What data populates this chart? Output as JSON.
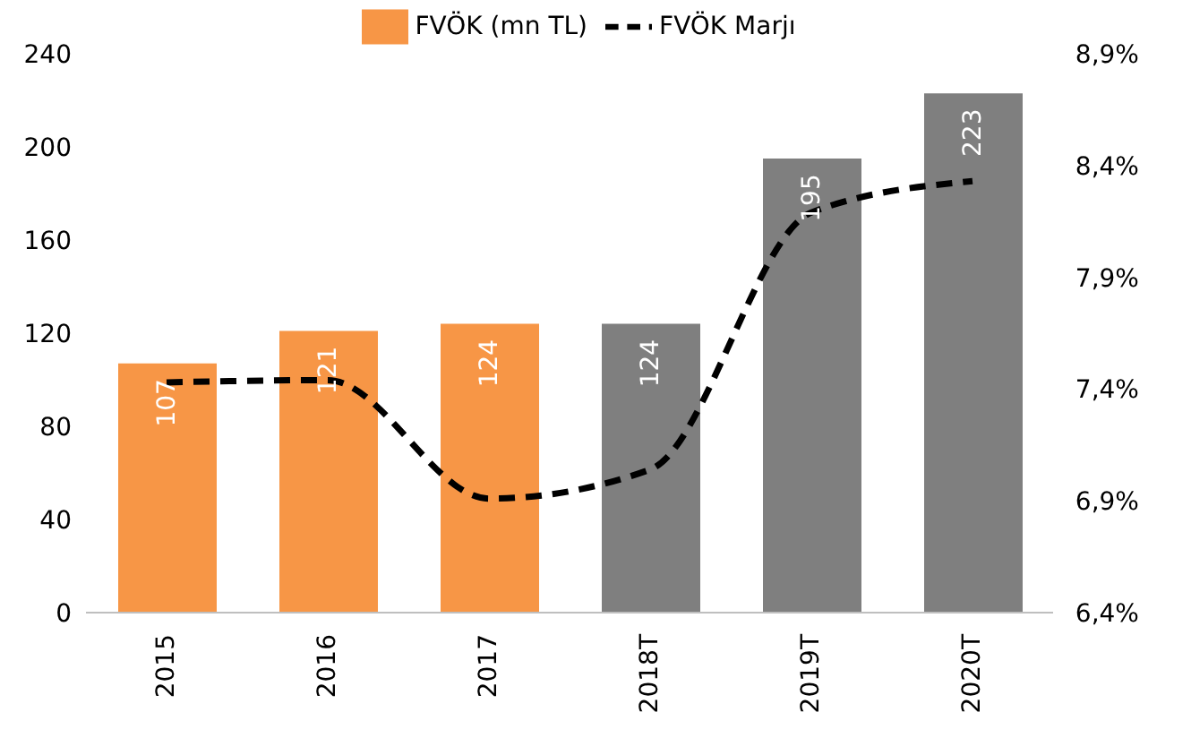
{
  "chart_data": {
    "type": "bar",
    "categories": [
      "2015",
      "2016",
      "2017",
      "2018T",
      "2019T",
      "2020T"
    ],
    "series": [
      {
        "name": "FVÖK (mn TL)",
        "color": "#f79646",
        "colors": [
          "#f79646",
          "#f79646",
          "#f79646",
          "#7f7f7f",
          "#7f7f7f",
          "#7f7f7f"
        ],
        "values": [
          107,
          121,
          124,
          124,
          195,
          223
        ],
        "value_labels": [
          "107",
          "121",
          "124",
          "124",
          "195",
          "223"
        ]
      },
      {
        "name": "FVÖK Marjı",
        "type": "line",
        "axis": "y2",
        "color": "#000000",
        "line_style": "dashed",
        "values": [
          7.43,
          7.44,
          6.91,
          7.04,
          8.19,
          8.33
        ]
      }
    ],
    "ylim": [
      0,
      240
    ],
    "yticks": [
      0,
      40,
      80,
      120,
      160,
      200,
      240
    ],
    "y2lim": [
      6.4,
      8.9
    ],
    "y2ticks": [
      {
        "value": 6.4,
        "label": "6,4%"
      },
      {
        "value": 6.9,
        "label": "6,9%"
      },
      {
        "value": 7.4,
        "label": "7,4%"
      },
      {
        "value": 7.9,
        "label": "7,9%"
      },
      {
        "value": 8.4,
        "label": "8,4%"
      },
      {
        "value": 8.9,
        "label": "8,9%"
      }
    ],
    "legend": "top",
    "marker": "none"
  }
}
